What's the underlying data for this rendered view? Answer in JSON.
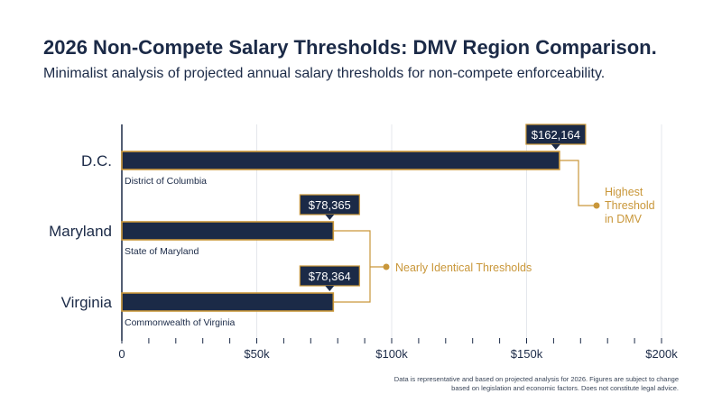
{
  "colors": {
    "bar": "#1b2a47",
    "accent": "#c9973a",
    "grid": "#e4e7ec",
    "axis": "#1b2a47"
  },
  "footnote": "Data is representative and based on projected analysis for 2026. Figures are subject to change based on legislation and economic factors. Does not constitute legal advice.",
  "chart_data": {
    "type": "bar",
    "orientation": "horizontal",
    "title": "2026 Non-Compete Salary Thresholds: DMV Region Comparison.",
    "subtitle": "Minimalist analysis of projected annual salary thresholds for non-compete enforceability.",
    "categories": [
      "D.C.",
      "Maryland",
      "Virginia"
    ],
    "category_subtitles": [
      "District of Columbia",
      "State of Maryland",
      "Commonwealth of Virginia"
    ],
    "values": [
      162164,
      78365,
      78364
    ],
    "value_labels": [
      "$162,164",
      "$78,365",
      "$78,364"
    ],
    "xlim": [
      0,
      200000
    ],
    "x_ticks": [
      0,
      50000,
      100000,
      150000,
      200000
    ],
    "x_tick_labels": [
      "0",
      "$50k",
      "$100k",
      "$150k",
      "$200k"
    ],
    "grid": true,
    "legend": "none",
    "annotations": [
      {
        "text_lines": [
          "Highest",
          "Threshold",
          "in DMV"
        ],
        "targets": [
          0
        ]
      },
      {
        "text_lines": [
          "Nearly Identical Thresholds"
        ],
        "targets": [
          1,
          2
        ]
      }
    ]
  }
}
